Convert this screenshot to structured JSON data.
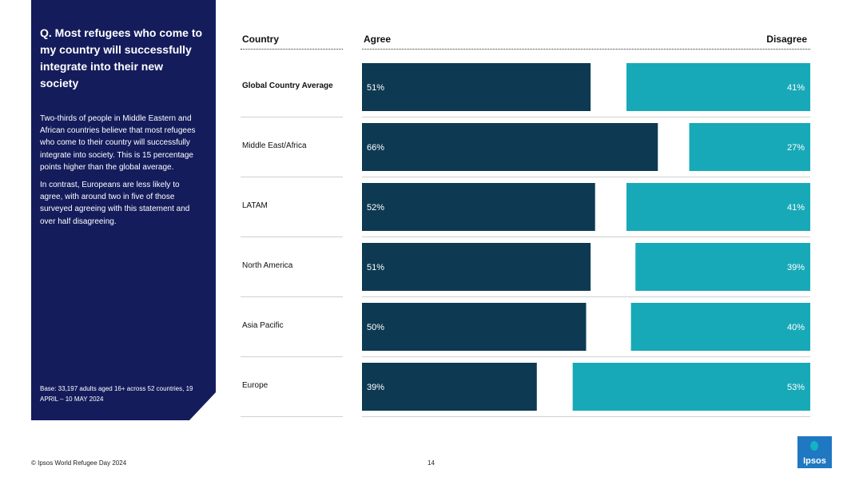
{
  "panel": {
    "question": "Q. Most refugees who come to my country will successfully integrate into their new society",
    "paragraph1": "Two-thirds of people in Middle Eastern and African countries believe that most refugees who come to their country will successfully integrate into society. This is 15 percentage points higher than the global average.",
    "paragraph2": "In contrast, Europeans are less likely to agree, with around two in five of those surveyed agreeing with this statement and over half disagreeing.",
    "base": "Base: 33,197 adults aged 16+ across 52 countries, 19 APRIL – 10 MAY 2024"
  },
  "headers": {
    "country": "Country",
    "agree": "Agree",
    "disagree": "Disagree"
  },
  "chart_data": {
    "type": "bar",
    "categories": [
      "Global Country Average",
      "Middle East/Africa",
      "LATAM",
      "North America",
      "Asia Pacific",
      "Europe"
    ],
    "series": [
      {
        "name": "Agree",
        "values": [
          51,
          66,
          52,
          51,
          50,
          39
        ],
        "color": "#0d3a52"
      },
      {
        "name": "Disagree",
        "values": [
          41,
          27,
          41,
          39,
          40,
          53
        ],
        "color": "#18a9b8"
      }
    ],
    "value_format": "%",
    "xlim": [
      0,
      100
    ]
  },
  "footer": {
    "copyright": "© Ipsos World Refugee Day 2024",
    "page": "14"
  },
  "logo": {
    "text": "Ipsos"
  }
}
